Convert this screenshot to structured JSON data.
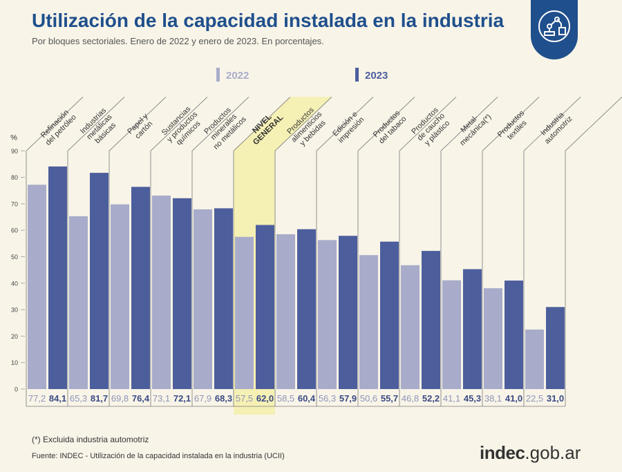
{
  "header": {
    "title": "Utilización de la capacidad instalada en la industria",
    "subtitle": "Por bloques sectoriales. Enero de 2022 y enero de 2023. En porcentajes.",
    "logo_icon": "industry-robot-icon"
  },
  "chart_data": {
    "type": "bar",
    "ylabel": "%",
    "ylim": [
      0,
      90
    ],
    "yticks": [
      0,
      10,
      20,
      30,
      40,
      50,
      60,
      70,
      80,
      90
    ],
    "grid": false,
    "legend_position": "top",
    "categories": [
      "Refinación del petróleo",
      "Industrias metálicas básicas",
      "Papel y cartón",
      "Sustancias y productos químicos",
      "Productos minerales no metálicos",
      "NIVEL GENERAL",
      "Productos alimenticios y bebidas",
      "Edición e impresión",
      "Productos del tabaco",
      "Productos de caucho y plástico",
      "Metal-mecánica(*)",
      "Productos textiles",
      "Industria automotriz"
    ],
    "series": [
      {
        "name": "2022",
        "color": "#a8acca",
        "values": [
          77.2,
          65.3,
          69.8,
          73.1,
          67.9,
          57.5,
          58.5,
          56.3,
          50.6,
          46.8,
          41.1,
          38.1,
          22.5
        ],
        "labels": [
          "77,2",
          "65,3",
          "69,8",
          "73,1",
          "67,9",
          "57,5",
          "58,5",
          "56,3",
          "50,6",
          "46,8",
          "41,1",
          "38,1",
          "22,5"
        ]
      },
      {
        "name": "2023",
        "color": "#4d5e9c",
        "values": [
          84.1,
          81.7,
          76.4,
          72.1,
          68.3,
          62.0,
          60.4,
          57.9,
          55.7,
          52.2,
          45.3,
          41.0,
          31.0
        ],
        "labels": [
          "84,1",
          "81,7",
          "76,4",
          "72,1",
          "68,3",
          "62,0",
          "60,4",
          "57,9",
          "55,7",
          "52,2",
          "45,3",
          "41,0",
          "31,0"
        ]
      }
    ],
    "highlight_category": "NIVEL GENERAL",
    "highlight_color": "#f5f0b4"
  },
  "category_lines": [
    [
      "Refinación",
      "del petróleo"
    ],
    [
      "Industrias",
      "metálicas",
      "básicas"
    ],
    [
      "Papel y",
      "cartón"
    ],
    [
      "Sustancias",
      "y productos",
      "químicos"
    ],
    [
      "Productos",
      "minerales",
      "no metálicos"
    ],
    [
      "NIVEL",
      "GENERAL"
    ],
    [
      "Productos",
      "alimenticios",
      "y bebidas"
    ],
    [
      "Edición e",
      "impresión"
    ],
    [
      "Productos",
      "del tabaco"
    ],
    [
      "Productos",
      "de caucho",
      "y plástico"
    ],
    [
      "Metal-",
      "mecánica(*)"
    ],
    [
      "Productos",
      "textiles"
    ],
    [
      "Industria",
      "automotriz"
    ]
  ],
  "footer": {
    "footnote": "(*) Excluida industria automotriz",
    "source": "Fuente: INDEC - Utilización de la capacidad instalada en la industria (UCII)",
    "brand_main": "indec",
    "brand_domain": ".gob.ar"
  }
}
